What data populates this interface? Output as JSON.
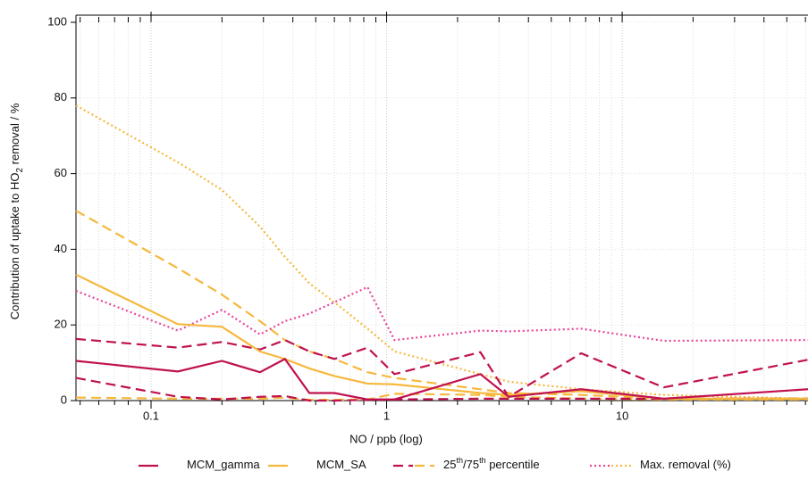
{
  "chart_data": {
    "type": "line",
    "x_label": "NO / ppb (log)",
    "y_label": [
      "Contribution of uptake to HO",
      "2",
      " removal / %"
    ],
    "x": [
      0.048,
      0.13,
      0.2,
      0.29,
      0.37,
      0.47,
      0.6,
      0.83,
      1.08,
      2.5,
      3.3,
      6.7,
      15,
      61.5
    ],
    "series": [
      {
        "name": "MCM_gamma",
        "color": "#c0114f",
        "dash": "solid",
        "values": [
          10.5,
          7.7,
          10.5,
          7.5,
          11,
          2,
          2,
          0.3,
          0.3,
          7,
          1,
          3,
          0.5,
          3
        ]
      },
      {
        "name": "MCM_SA",
        "color": "#f6b83c",
        "dash": "solid",
        "values": [
          33.3,
          20.2,
          19.5,
          13,
          11,
          8.5,
          6.5,
          4.5,
          4.3,
          2,
          1.5,
          2.5,
          0.5,
          0.5
        ]
      },
      {
        "color": "#c0114f",
        "dash": "dashed",
        "values": [
          6,
          1,
          0.3,
          1,
          1.2,
          0,
          0,
          0.2,
          0.3,
          0.5,
          0.5,
          0.5,
          0.5,
          0.5
        ]
      },
      {
        "color": "#c0114f",
        "dash": "dashed",
        "values": [
          16.3,
          14,
          15.5,
          13.5,
          16,
          13,
          11,
          14,
          7,
          12.8,
          1,
          12.5,
          3.5,
          10.8
        ]
      },
      {
        "color": "#f6b83c",
        "dash": "dashed",
        "values": [
          0.8,
          0.5,
          0.5,
          0.5,
          0.8,
          0.2,
          0.2,
          0.3,
          1.8,
          1.5,
          1,
          0.5,
          0.3,
          0.3
        ]
      },
      {
        "color": "#f6b83c",
        "dash": "dashed",
        "values": [
          50.2,
          35,
          28,
          21,
          16,
          13,
          11,
          7.5,
          6,
          3,
          2,
          1.5,
          0.5,
          0.5
        ]
      },
      {
        "color": "#e8449a",
        "dash": "dotted",
        "values": [
          29,
          18.5,
          24,
          17.5,
          21,
          23,
          26,
          30,
          16,
          18.5,
          18.3,
          19,
          15.8,
          16
        ]
      },
      {
        "color": "#f6b83c",
        "dash": "dotted",
        "values": [
          78,
          63,
          55.7,
          46,
          38,
          31,
          26,
          19,
          13,
          7,
          5,
          3,
          1.5,
          0.5
        ]
      }
    ],
    "legend": [
      {
        "label": [
          "MCM_gamma"
        ],
        "series": [
          0
        ]
      },
      {
        "label": [
          "MCM_SA"
        ],
        "series": [
          1
        ]
      },
      {
        "label": [
          "25",
          "th",
          "/75",
          "th",
          " percentile"
        ],
        "series": [
          2,
          4
        ]
      },
      {
        "label": [
          "Max. removal (%)"
        ],
        "series": [
          6,
          7
        ]
      }
    ],
    "x_log": true,
    "xlim": [
      0.048,
      61.5
    ],
    "xticks": [
      0.1,
      1,
      10
    ],
    "xminorticks": [
      0.05,
      0.06,
      0.07,
      0.08,
      0.09,
      0.2,
      0.3,
      0.4,
      0.5,
      0.6,
      0.7,
      0.8,
      0.9,
      2,
      3,
      4,
      5,
      6,
      7,
      8,
      9,
      20,
      30,
      40,
      50,
      60
    ],
    "ylim": [
      0,
      100
    ],
    "yticks": [
      0,
      20,
      40,
      60,
      80,
      100
    ],
    "grid": true
  }
}
